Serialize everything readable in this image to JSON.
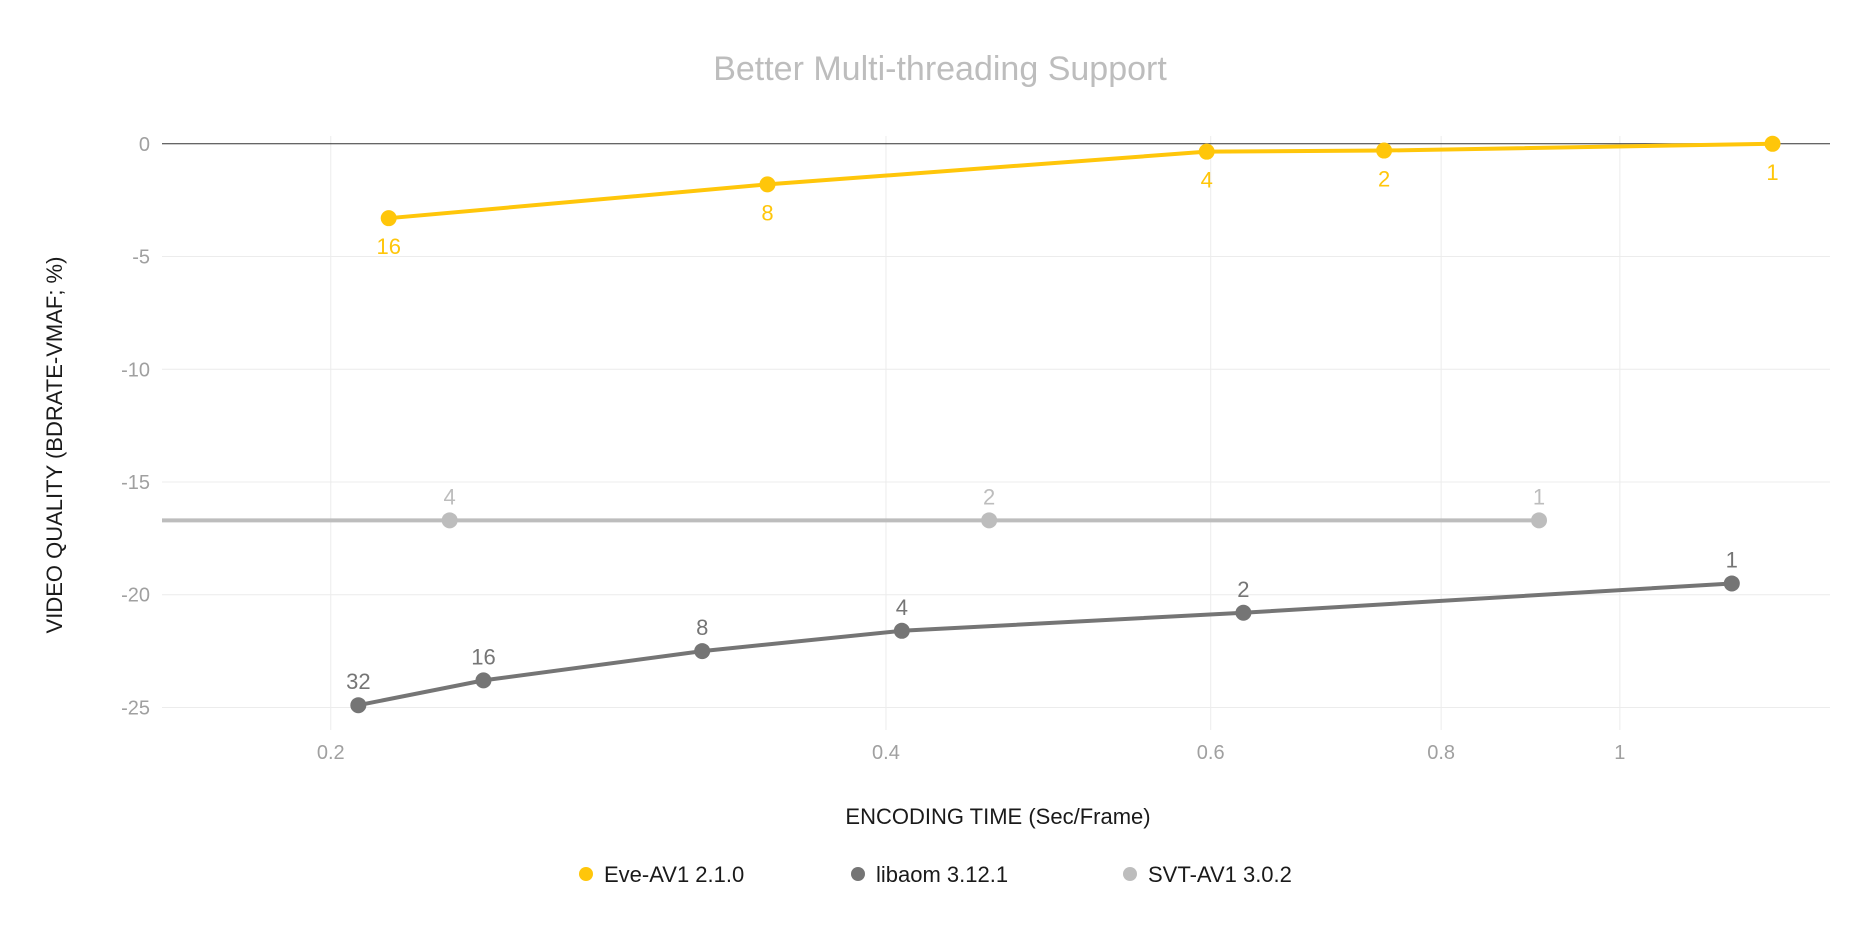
{
  "chart_data": {
    "type": "line",
    "title": "Better Multi-threading Support",
    "xlabel": "ENCODING TIME (Sec/Frame)",
    "ylabel": "VIDEO QUALITY (BDRATE-VMAF; %)",
    "x_scale": "log",
    "xlim": [
      0.162,
      1.3
    ],
    "ylim": [
      -26,
      0.7
    ],
    "x_ticks": [
      0.2,
      0.4,
      0.6,
      0.8,
      1
    ],
    "x_tick_labels": [
      "0.2",
      "0.4",
      "0.6",
      "0.8",
      "1"
    ],
    "y_ticks": [
      0,
      -5,
      -10,
      -15,
      -20,
      -25
    ],
    "y_tick_labels": [
      "0",
      "-5",
      "-10",
      "-15",
      "-20",
      "-25"
    ],
    "grid": true,
    "zero_line": true,
    "legend_position": "bottom",
    "series": [
      {
        "name": "Eve-AV1 2.1.0",
        "color": "#ffc60a",
        "label_position": "below",
        "points": [
          {
            "x": 0.215,
            "y": -3.3,
            "label": "16"
          },
          {
            "x": 0.345,
            "y": -1.8,
            "label": "8"
          },
          {
            "x": 0.597,
            "y": -0.35,
            "label": "4"
          },
          {
            "x": 0.745,
            "y": -0.3,
            "label": "2"
          },
          {
            "x": 1.21,
            "y": 0,
            "label": "1"
          }
        ]
      },
      {
        "name": "libaom 3.12.1",
        "color": "#757575",
        "label_position": "above",
        "points": [
          {
            "x": 0.207,
            "y": -24.9,
            "label": "32"
          },
          {
            "x": 0.242,
            "y": -23.8,
            "label": "16"
          },
          {
            "x": 0.318,
            "y": -22.5,
            "label": "8"
          },
          {
            "x": 0.408,
            "y": -21.6,
            "label": "4"
          },
          {
            "x": 0.625,
            "y": -20.8,
            "label": "2"
          },
          {
            "x": 1.15,
            "y": -19.5,
            "label": "1"
          }
        ]
      },
      {
        "name": "SVT-AV1 3.0.2",
        "color": "#bdbdbd",
        "label_position": "above",
        "line_start_x": 0.162,
        "points": [
          {
            "x": 0.232,
            "y": -16.7,
            "label": "4"
          },
          {
            "x": 0.455,
            "y": -16.7,
            "label": "2"
          },
          {
            "x": 0.904,
            "y": -16.7,
            "label": "1"
          }
        ]
      }
    ]
  }
}
